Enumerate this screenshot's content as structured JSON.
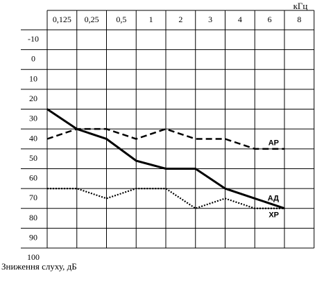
{
  "chart_data": {
    "type": "line",
    "x_label": "кГц",
    "y_label": "Зниження слуху, дБ",
    "categories": [
      "0,125",
      "0,25",
      "0,5",
      "1",
      "2",
      "3",
      "4",
      "6",
      "8"
    ],
    "yticks": [
      -10,
      0,
      10,
      20,
      30,
      40,
      50,
      60,
      70,
      80,
      90,
      100
    ],
    "ylim": [
      -15,
      95
    ],
    "y_inverted": true,
    "series": [
      {
        "name": "АР",
        "color": "#000000",
        "style": "dashed",
        "values": [
          40,
          35,
          35,
          40,
          35,
          40,
          40,
          45,
          45
        ]
      },
      {
        "name": "АД",
        "color": "#000000",
        "style": "solid",
        "values": [
          25,
          35,
          40,
          51,
          55,
          55,
          65,
          70,
          75
        ]
      },
      {
        "name": "ХР",
        "color": "#000000",
        "style": "dotted",
        "values": [
          65,
          65,
          70,
          65,
          65,
          75,
          70,
          75,
          75
        ]
      }
    ]
  }
}
